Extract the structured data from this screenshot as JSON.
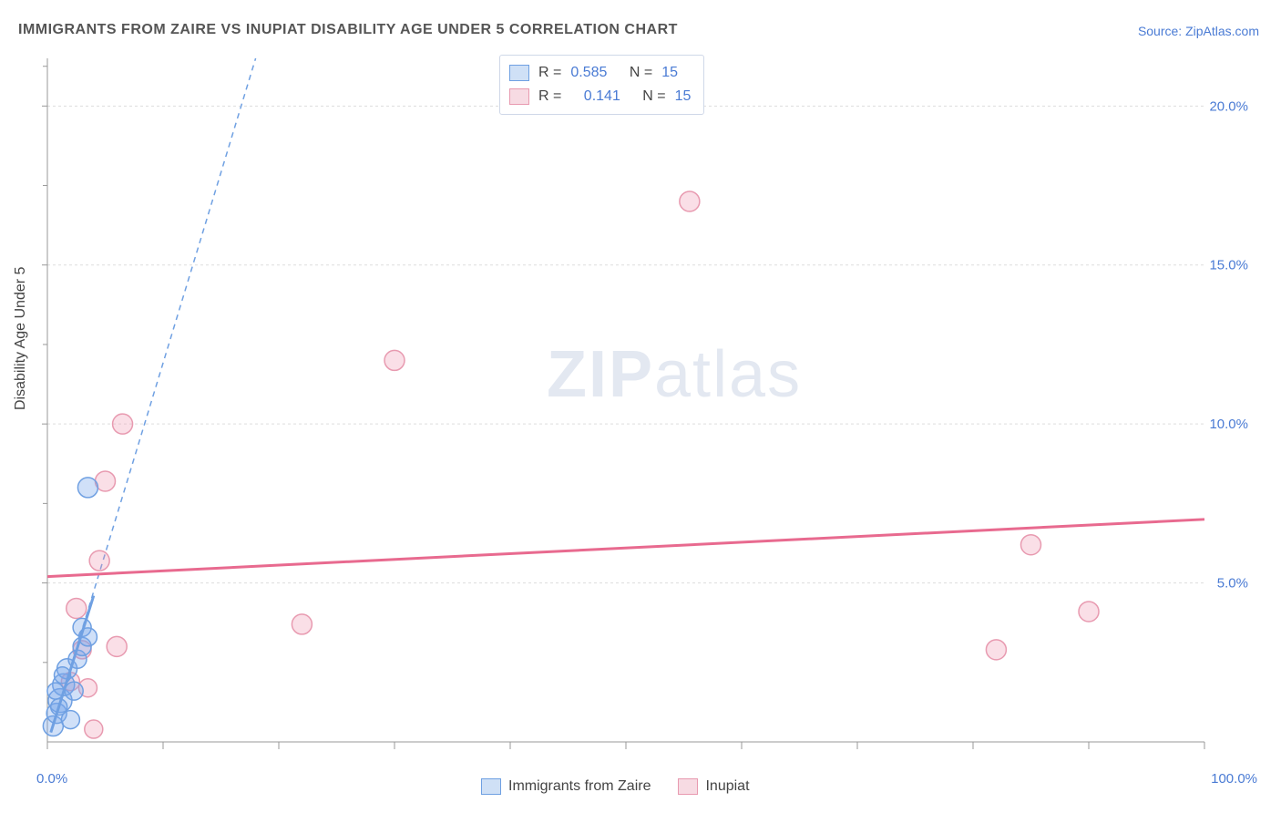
{
  "title": "IMMIGRANTS FROM ZAIRE VS INUPIAT DISABILITY AGE UNDER 5 CORRELATION CHART",
  "source": "Source: ZipAtlas.com",
  "y_axis_label": "Disability Age Under 5",
  "watermark_a": "ZIP",
  "watermark_b": "atlas",
  "chart": {
    "type": "scatter",
    "xlim": [
      0,
      100
    ],
    "ylim": [
      0,
      21.5
    ],
    "x_ticks": [
      0,
      10,
      20,
      30,
      40,
      50,
      60,
      70,
      80,
      90,
      100
    ],
    "x_tick_labels_shown": {
      "0": "0.0%",
      "100": "100.0%"
    },
    "y_ticks": [
      5,
      10,
      15,
      20
    ],
    "y_tick_labels": [
      "5.0%",
      "10.0%",
      "15.0%",
      "20.0%"
    ],
    "y_minor_ticks": [
      2.5,
      7.5,
      12.5,
      17.5,
      21.25
    ],
    "grid_color": "#dddddd",
    "axis_color": "#999999",
    "tick_label_color": "#4a7bd4",
    "background_color": "#ffffff",
    "series": [
      {
        "name": "Immigrants from Zaire",
        "color_fill": "rgba(120,165,235,0.35)",
        "color_stroke": "#6fa0e2",
        "swatch_fill": "#cfe0f6",
        "swatch_border": "#6fa0e2",
        "trend": {
          "type": "dashed",
          "color": "#6fa0e2",
          "x1": 0.3,
          "y1": 0.3,
          "x2": 18,
          "y2": 21.5
        },
        "r_label": "R =",
        "r_value": "0.585",
        "n_label": "N =",
        "n_value": "15",
        "points": [
          {
            "x": 0.5,
            "y": 0.5,
            "r": 11
          },
          {
            "x": 0.8,
            "y": 0.9,
            "r": 11
          },
          {
            "x": 1.1,
            "y": 1.3,
            "r": 13
          },
          {
            "x": 1.4,
            "y": 1.8,
            "r": 12
          },
          {
            "x": 1.7,
            "y": 2.3,
            "r": 11
          },
          {
            "x": 2.0,
            "y": 0.7,
            "r": 10
          },
          {
            "x": 2.3,
            "y": 1.6,
            "r": 10
          },
          {
            "x": 2.6,
            "y": 2.6,
            "r": 10
          },
          {
            "x": 3.0,
            "y": 3.0,
            "r": 10
          },
          {
            "x": 3.0,
            "y": 3.6,
            "r": 10
          },
          {
            "x": 3.5,
            "y": 3.3,
            "r": 10
          },
          {
            "x": 3.5,
            "y": 8.0,
            "r": 11
          },
          {
            "x": 1.0,
            "y": 1.1,
            "r": 9
          },
          {
            "x": 0.7,
            "y": 1.6,
            "r": 9
          },
          {
            "x": 1.3,
            "y": 2.1,
            "r": 9
          }
        ]
      },
      {
        "name": "Inupiat",
        "color_fill": "rgba(240,150,175,0.30)",
        "color_stroke": "#e89ab0",
        "swatch_fill": "#f7dbe3",
        "swatch_border": "#e89ab0",
        "trend": {
          "type": "solid",
          "color": "#e86a8f",
          "x1": 0,
          "y1": 5.2,
          "x2": 100,
          "y2": 7.0
        },
        "r_label": "R =",
        "r_value": "0.141",
        "n_label": "N =",
        "n_value": "15",
        "points": [
          {
            "x": 2.5,
            "y": 4.2,
            "r": 11
          },
          {
            "x": 3.0,
            "y": 2.9,
            "r": 10
          },
          {
            "x": 3.5,
            "y": 1.7,
            "r": 10
          },
          {
            "x": 4.5,
            "y": 5.7,
            "r": 11
          },
          {
            "x": 5.0,
            "y": 8.2,
            "r": 11
          },
          {
            "x": 6.0,
            "y": 3.0,
            "r": 11
          },
          {
            "x": 6.5,
            "y": 10.0,
            "r": 11
          },
          {
            "x": 4.0,
            "y": 0.4,
            "r": 10
          },
          {
            "x": 22.0,
            "y": 3.7,
            "r": 11
          },
          {
            "x": 30.0,
            "y": 12.0,
            "r": 11
          },
          {
            "x": 55.5,
            "y": 17.0,
            "r": 11
          },
          {
            "x": 82.0,
            "y": 2.9,
            "r": 11
          },
          {
            "x": 85.0,
            "y": 6.2,
            "r": 11
          },
          {
            "x": 90.0,
            "y": 4.1,
            "r": 11
          },
          {
            "x": 2.0,
            "y": 1.9,
            "r": 10
          }
        ]
      }
    ]
  },
  "bottom_legend_series1": "Immigrants from Zaire",
  "bottom_legend_series2": "Inupiat"
}
